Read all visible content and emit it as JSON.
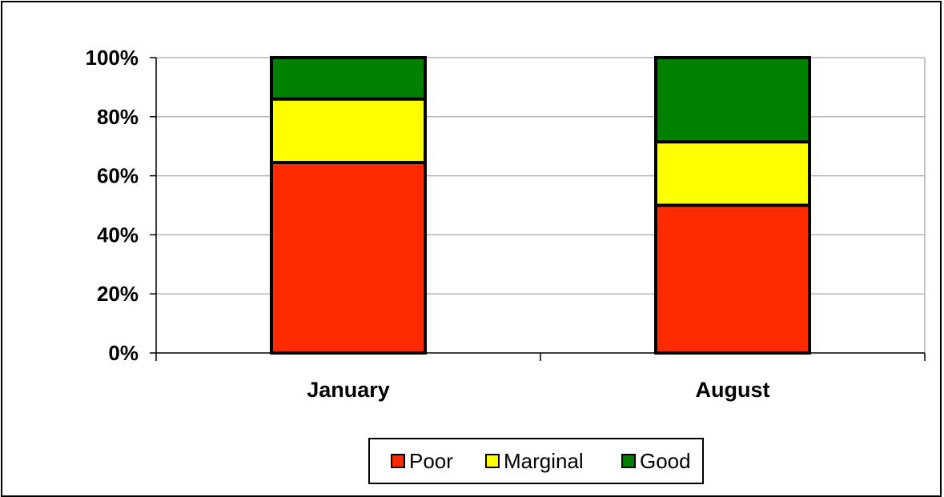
{
  "chart_data": {
    "type": "bar",
    "stacked": true,
    "categories": [
      "January",
      "August"
    ],
    "series": [
      {
        "name": "Poor",
        "values": [
          64.5,
          50
        ],
        "color": "#ff2a00"
      },
      {
        "name": "Marginal",
        "values": [
          21.5,
          21.5
        ],
        "color": "#ffff00"
      },
      {
        "name": "Good",
        "values": [
          14,
          28.5
        ],
        "color": "#008000"
      }
    ],
    "ylim": [
      0,
      100
    ],
    "yticks": [
      "0%",
      "20%",
      "40%",
      "60%",
      "80%",
      "100%"
    ],
    "ytick_values": [
      0,
      20,
      40,
      60,
      80,
      100
    ],
    "grid": true,
    "legend_position": "bottom",
    "title": "",
    "xlabel": "",
    "ylabel": ""
  }
}
